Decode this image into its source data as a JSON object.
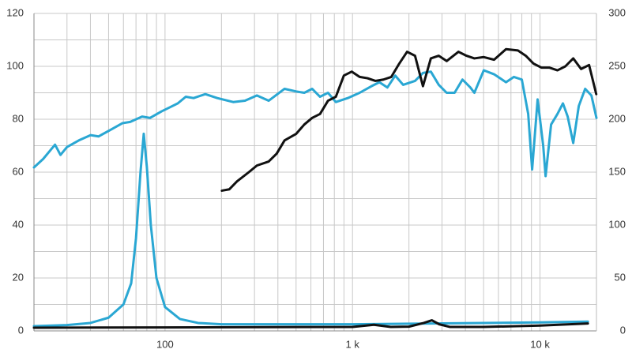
{
  "chart_data": {
    "type": "line",
    "xscale": "log",
    "grid": true,
    "xlim": [
      20,
      20000
    ],
    "xticks": [
      {
        "value": 100,
        "label": "100"
      },
      {
        "value": 1000,
        "label": "1 k"
      },
      {
        "value": 10000,
        "label": "10 k"
      }
    ],
    "x_minor_ticks": [
      20,
      30,
      40,
      50,
      60,
      70,
      80,
      90,
      200,
      300,
      400,
      500,
      600,
      700,
      800,
      900,
      2000,
      3000,
      4000,
      5000,
      6000,
      7000,
      8000,
      9000
    ],
    "ylim": [
      0,
      120
    ],
    "yticks": [
      0,
      20,
      40,
      60,
      80,
      100,
      120
    ],
    "y_minor_ticks": [
      10,
      30,
      50,
      70,
      90,
      110
    ],
    "y2lim": [
      0,
      300
    ],
    "y2ticks": [
      0,
      50,
      100,
      150,
      200,
      250,
      300
    ],
    "series": [
      {
        "color": "#2aa7d3",
        "x": [
          20,
          22.4,
          25.9,
          27.7,
          30,
          34.7,
          40.1,
          44.2,
          51.2,
          59.2,
          65.2,
          75.5,
          83.2,
          96,
          106,
          117,
          129,
          142,
          164,
          190,
          231,
          267,
          309,
          357,
          434,
          501,
          553,
          609,
          671,
          740,
          815,
          943,
          1091,
          1262,
          1391,
          1534,
          1690,
          1862,
          2155,
          2375,
          2617,
          2884,
          3178,
          3502,
          3859,
          4253,
          4465,
          5012,
          5689,
          6586,
          7257,
          7998,
          8650,
          9078,
          9711,
          10400,
          10710,
          11460,
          12390,
          13250,
          14050,
          15040,
          16100,
          17410,
          18800,
          20000
        ],
        "values": [
          61.8,
          65,
          70.4,
          66.5,
          69.5,
          72,
          74,
          73.5,
          76,
          78.5,
          79,
          81,
          80.5,
          83,
          84.5,
          86,
          88.5,
          88,
          89.5,
          88,
          86.5,
          87,
          89,
          87,
          91.5,
          90.5,
          90,
          91.5,
          88.5,
          90,
          86.5,
          88,
          90,
          92.5,
          94,
          92,
          96.5,
          93,
          94.5,
          97.5,
          98,
          93,
          90,
          90,
          95,
          92,
          90,
          98.5,
          97,
          94,
          96,
          95,
          82,
          61,
          87.5,
          70,
          58.5,
          78,
          82,
          86,
          81,
          71,
          85,
          91.5,
          89,
          80.5
        ]
      },
      {
        "color": "#111111",
        "x": [
          201,
          220,
          242,
          280,
          309,
          357,
          394,
          434,
          501,
          553,
          609,
          671,
          740,
          815,
          899,
          991,
          1091,
          1202,
          1325,
          1461,
          1610,
          1774,
          1955,
          2155,
          2375,
          2617,
          2884,
          3178,
          3673,
          4053,
          4465,
          5012,
          5689,
          6586,
          7621,
          8395,
          9247,
          10190,
          11240,
          12390,
          13650,
          15040,
          16560,
          18270,
          19950
        ],
        "values": [
          53,
          53.5,
          56.5,
          60,
          62.5,
          64,
          67,
          72,
          74.5,
          78,
          80.5,
          82,
          87,
          88.5,
          96.5,
          98,
          96,
          95.5,
          94.5,
          95,
          96,
          101,
          105.5,
          104,
          92.5,
          103,
          104,
          102,
          105.5,
          104,
          103,
          103.5,
          102.5,
          106.5,
          106,
          104,
          101,
          99.5,
          99.5,
          98.5,
          100,
          103,
          99,
          100.5,
          89.5
        ]
      },
      {
        "color": "#2aa7d3",
        "x": [
          20,
          30,
          40,
          50,
          60,
          66,
          70,
          74,
          77,
          80,
          84,
          90,
          100,
          120,
          150,
          200,
          1000,
          5000,
          10000,
          18000
        ],
        "values": [
          1.8,
          2.2,
          3,
          5,
          10,
          18,
          35,
          60,
          74.5,
          62,
          40,
          20,
          9,
          4.5,
          3,
          2.5,
          2.5,
          3,
          3.2,
          3.5
        ]
      },
      {
        "color": "#111111",
        "x": [
          20,
          100,
          1000,
          1300,
          1600,
          2000,
          2400,
          2650,
          2900,
          3300,
          5000,
          10000,
          18000
        ],
        "values": [
          1.2,
          1.3,
          1.5,
          2.3,
          1.5,
          1.6,
          3,
          4,
          2.5,
          1.5,
          1.5,
          2,
          2.8
        ]
      }
    ]
  }
}
